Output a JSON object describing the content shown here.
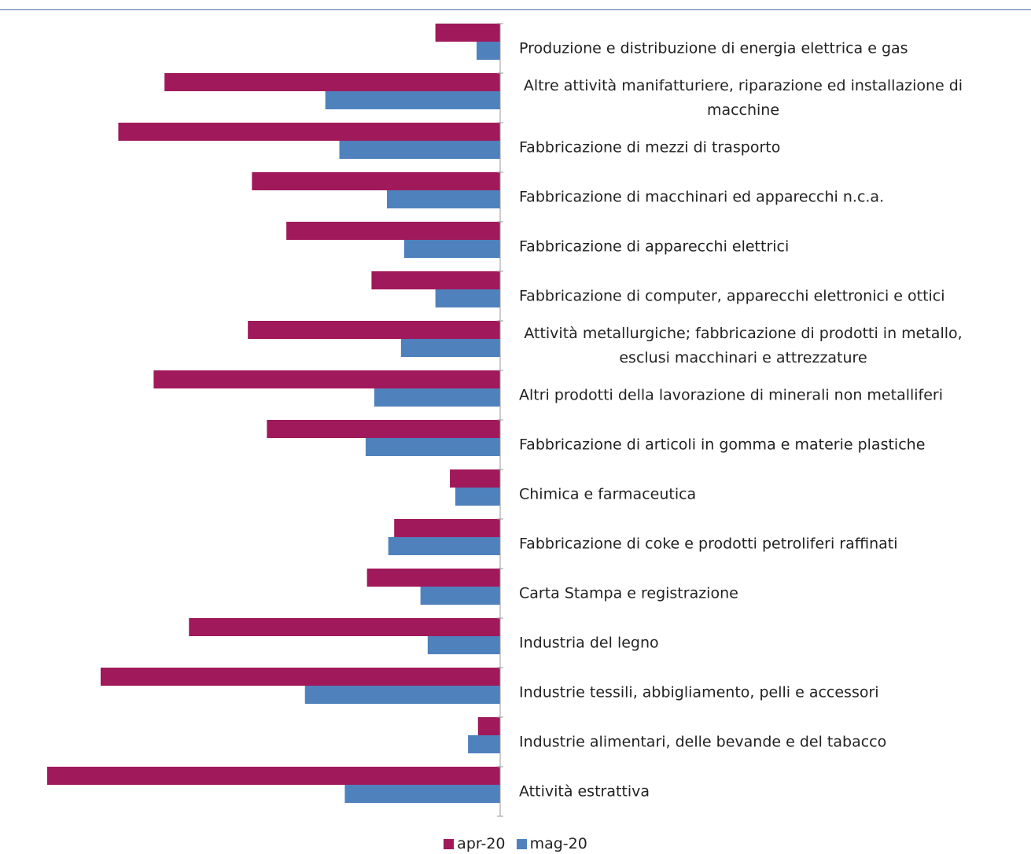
{
  "chart_data": {
    "type": "bar",
    "orientation": "horizontal",
    "title": "",
    "xlabel": "",
    "ylabel": "",
    "xlim": [
      -1.0,
      0
    ],
    "categories": [
      "Produzione e distribuzione di energia elettrica e gas",
      "Altre attività manifatturiere, riparazione ed installazione di macchine",
      "Fabbricazione di mezzi di trasporto",
      "Fabbricazione di macchinari ed apparecchi n.c.a.",
      "Fabbricazione di apparecchi elettrici",
      "Fabbricazione di computer, apparecchi elettronici e ottici",
      "Attività metallurgiche; fabbricazione di prodotti in metallo, esclusi macchinari e attrezzature",
      "Altri prodotti della lavorazione di minerali non metalliferi",
      "Fabbricazione di articoli in gomma e materie plastiche",
      "Chimica e farmaceutica",
      "Fabbricazione di coke e prodotti petroliferi raffinati",
      "Carta Stampa e registrazione",
      "Industria del legno",
      "Industrie tessili, abbigliamento, pelli e accessori",
      "Industrie alimentari, delle bevande e del tabacco",
      "Attività estrattiva"
    ],
    "series": [
      {
        "name": "apr-20",
        "color": "#a0195a",
        "values": [
          -0.143,
          -0.741,
          -0.843,
          -0.548,
          -0.472,
          -0.284,
          -0.557,
          -0.765,
          -0.515,
          -0.111,
          -0.234,
          -0.294,
          -0.687,
          -0.882,
          -0.049,
          -1.0
        ]
      },
      {
        "name": "mag-20",
        "color": "#4f81bd",
        "values": [
          -0.052,
          -0.386,
          -0.355,
          -0.25,
          -0.212,
          -0.143,
          -0.219,
          -0.278,
          -0.297,
          -0.099,
          -0.247,
          -0.176,
          -0.16,
          -0.431,
          -0.071,
          -0.343
        ]
      }
    ],
    "grid": false,
    "legend": "bottom"
  }
}
